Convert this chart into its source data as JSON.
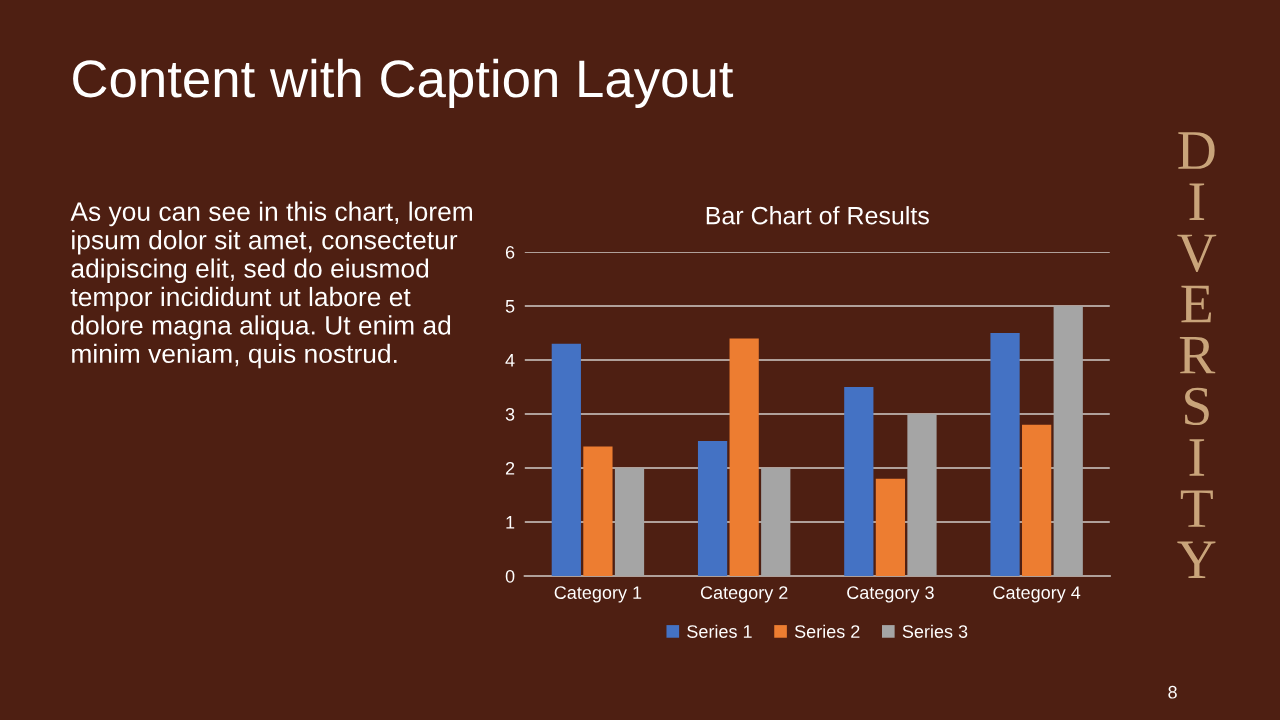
{
  "chart_data": {
    "type": "bar",
    "title": "Bar Chart of Results",
    "categories": [
      "Category 1",
      "Category 2",
      "Category 3",
      "Category 4"
    ],
    "series": [
      {
        "name": "Series 1",
        "color": "#4472c4",
        "values": [
          4.3,
          2.5,
          3.5,
          4.5
        ]
      },
      {
        "name": "Series 2",
        "color": "#ed7d31",
        "values": [
          2.4,
          4.4,
          1.8,
          2.8
        ]
      },
      {
        "name": "Series 3",
        "color": "#a5a5a5",
        "values": [
          2,
          2,
          3,
          5
        ]
      }
    ],
    "ylim": [
      0,
      6
    ],
    "yticks": [
      0,
      1,
      2,
      3,
      4,
      5,
      6
    ],
    "grid": "y",
    "legend": "bottom",
    "annotations": [
      "Content with Caption Layout",
      "As you can see in this chart, lorem\nipsum dolor sit amet, consectetur\nadipiscing elit, sed do eiusmod\ntempor incididunt ut labore et\ndolore magna aliqua. Ut enim ad\nminim veniam, quis nostrud.",
      "DIVERSITY",
      "8"
    ]
  }
}
